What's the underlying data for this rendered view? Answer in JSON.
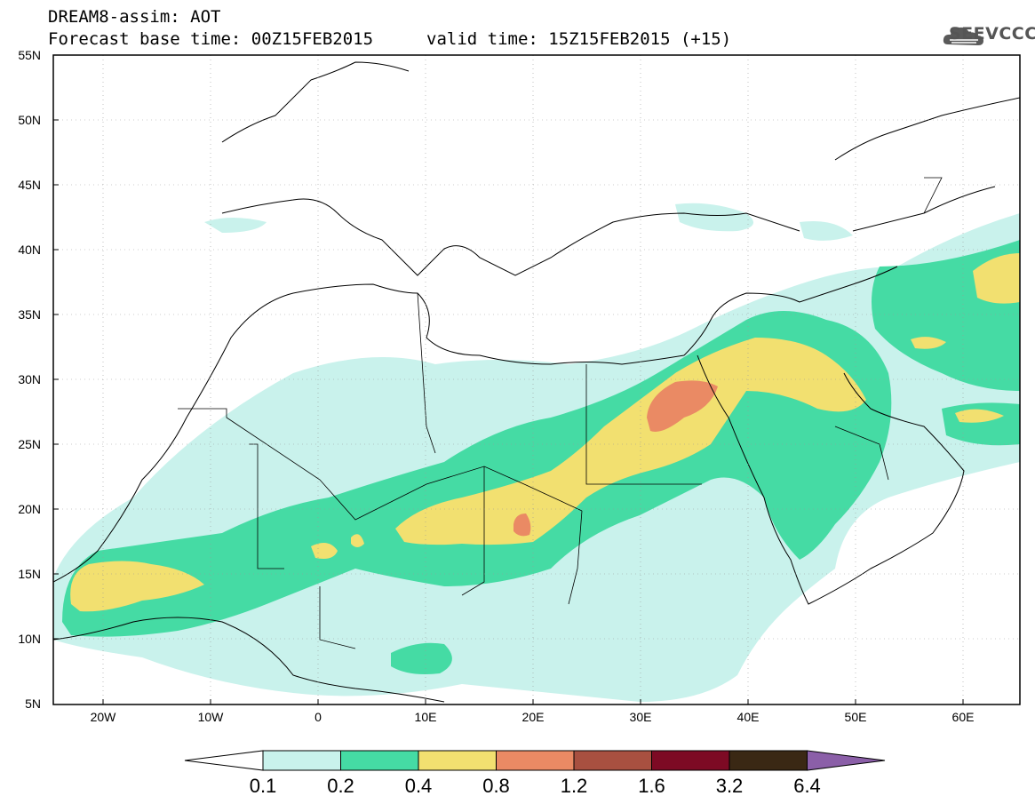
{
  "header": {
    "line1": "DREAM8-assim: AOT",
    "line2a": "Forecast base time: 00Z15FEB2015",
    "line2b": "valid time: 15Z15FEB2015 (+15)"
  },
  "logo": {
    "text": "SEEVCCC",
    "icon": "cloud-icon"
  },
  "map": {
    "lat_labels": [
      "55N",
      "50N",
      "45N",
      "40N",
      "35N",
      "30N",
      "25N",
      "20N",
      "15N",
      "10N",
      "5N"
    ],
    "lon_labels": [
      "20W",
      "10W",
      "0",
      "10E",
      "20E",
      "30E",
      "40E",
      "50E",
      "60E"
    ]
  },
  "colorbar": {
    "thresholds": [
      "0.1",
      "0.2",
      "0.4",
      "0.8",
      "1.2",
      "1.6",
      "3.2",
      "6.4"
    ],
    "colors": [
      "#c9f2ec",
      "#45dba4",
      "#f2e070",
      "#ea8a64",
      "#a85040",
      "#7d0a24",
      "#3a2814",
      "#8b5fa8"
    ],
    "under_color": "#ffffff"
  },
  "palette": {
    "light": "#c9f2ec",
    "green": "#45dba4",
    "yellow": "#f2e070",
    "orange": "#ea8a64"
  }
}
